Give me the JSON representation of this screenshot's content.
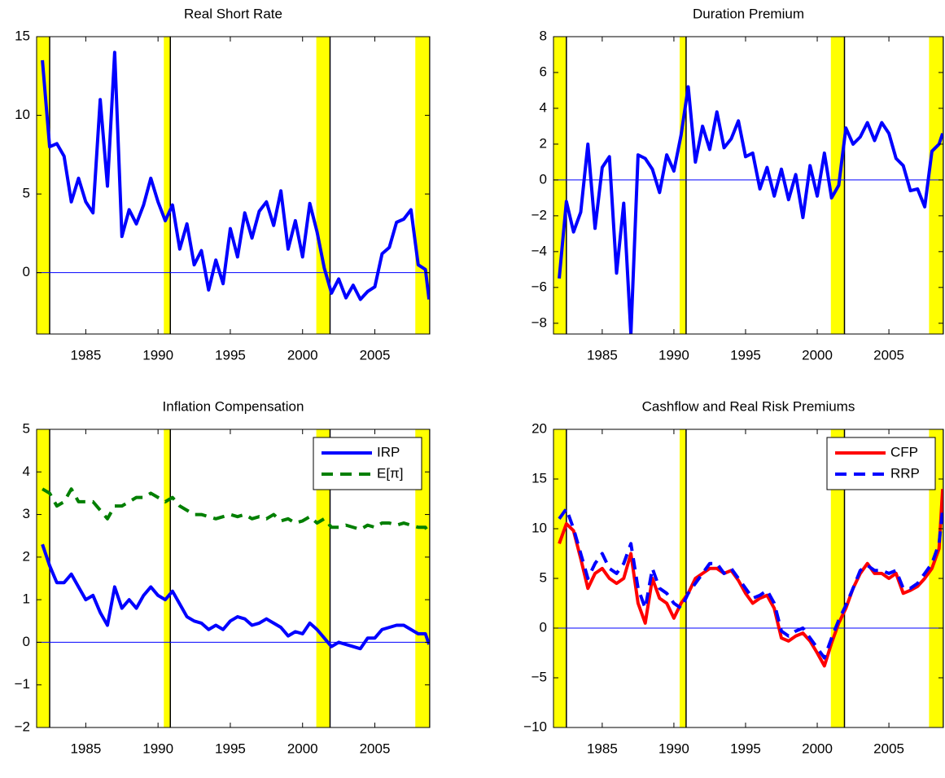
{
  "chart_data": [
    {
      "type": "line",
      "title": "Real Short Rate",
      "x": [
        1982,
        1982.5,
        1983,
        1983.5,
        1984,
        1984.5,
        1985,
        1985.5,
        1986,
        1986.5,
        1987,
        1987.5,
        1988,
        1988.5,
        1989,
        1989.5,
        1990,
        1990.5,
        1991,
        1991.5,
        1992,
        1992.5,
        1993,
        1993.5,
        1994,
        1994.5,
        1995,
        1995.5,
        1996,
        1996.5,
        1997,
        1997.5,
        1998,
        1998.5,
        1999,
        1999.5,
        2000,
        2000.5,
        2001,
        2001.5,
        2002,
        2002.5,
        2003,
        2003.5,
        2004,
        2004.5,
        2005,
        2005.5,
        2006,
        2006.5,
        2007,
        2007.5,
        2008,
        2008.5,
        2008.75
      ],
      "xlim": [
        1981.6,
        2008.8
      ],
      "xticks": [
        1985,
        1990,
        1995,
        2000,
        2005
      ],
      "ylim": [
        -3.9,
        15
      ],
      "yticks": [
        0,
        5,
        10,
        15
      ],
      "hline": 0,
      "hline_color": "#0000ff",
      "shaded_regions": [
        [
          1981.6,
          1982.5
        ],
        [
          1990.4,
          1990.85
        ],
        [
          2000.95,
          2001.9
        ],
        [
          2007.8,
          2008.8
        ]
      ],
      "shade_color": "#ffff00",
      "series": [
        {
          "color": "#0000ff",
          "style": "solid",
          "values": [
            13.5,
            8,
            8.2,
            7.4,
            4.5,
            6,
            4.5,
            3.8,
            11,
            5.5,
            14,
            2.3,
            4,
            3.1,
            4.3,
            6,
            4.5,
            3.3,
            4.3,
            1.5,
            3.1,
            0.5,
            1.4,
            -1.1,
            0.8,
            -0.7,
            2.8,
            1,
            3.8,
            2.2,
            3.9,
            4.5,
            3,
            5.2,
            1.5,
            3.3,
            1,
            4.4,
            2.6,
            0.3,
            -1.3,
            -0.4,
            -1.6,
            -0.8,
            -1.7,
            -1.2,
            -0.9,
            1.2,
            1.6,
            3.2,
            3.4,
            4,
            0.5,
            0.2,
            -1.7
          ]
        }
      ]
    },
    {
      "type": "line",
      "title": "Duration Premium",
      "x": [
        1982,
        1982.5,
        1983,
        1983.5,
        1984,
        1984.5,
        1985,
        1985.5,
        1986,
        1986.5,
        1987,
        1987.5,
        1988,
        1988.5,
        1989,
        1989.5,
        1990,
        1990.5,
        1991,
        1991.5,
        1992,
        1992.5,
        1993,
        1993.5,
        1994,
        1994.5,
        1995,
        1995.5,
        1996,
        1996.5,
        1997,
        1997.5,
        1998,
        1998.5,
        1999,
        1999.5,
        2000,
        2000.5,
        2001,
        2001.5,
        2002,
        2002.5,
        2003,
        2003.5,
        2004,
        2004.5,
        2005,
        2005.5,
        2006,
        2006.5,
        2007,
        2007.5,
        2008,
        2008.5,
        2008.75
      ],
      "xlim": [
        1981.6,
        2008.8
      ],
      "xticks": [
        1985,
        1990,
        1995,
        2000,
        2005
      ],
      "ylim": [
        -8.6,
        8
      ],
      "yticks": [
        {
          "value": -8,
          "label": "−8"
        },
        {
          "value": -6,
          "label": "−6"
        },
        {
          "value": -4,
          "label": "−4"
        },
        {
          "value": -2,
          "label": "−2"
        },
        0,
        2,
        4,
        6,
        8
      ],
      "hline": 0,
      "hline_color": "#0000ff",
      "shaded_regions": [
        [
          1981.6,
          1982.5
        ],
        [
          1990.4,
          1990.85
        ],
        [
          2000.95,
          2001.9
        ],
        [
          2007.8,
          2008.8
        ]
      ],
      "shade_color": "#ffff00",
      "series": [
        {
          "color": "#0000ff",
          "style": "solid",
          "values": [
            -5.5,
            -1.2,
            -2.9,
            -1.8,
            2,
            -2.7,
            0.7,
            1.3,
            -5.2,
            -1.3,
            -8.6,
            1.4,
            1.2,
            0.6,
            -0.7,
            1.4,
            0.5,
            2.5,
            5.2,
            1,
            3,
            1.7,
            3.8,
            1.8,
            2.3,
            3.3,
            1.3,
            1.5,
            -0.5,
            0.7,
            -0.9,
            0.6,
            -1.1,
            0.3,
            -2.1,
            0.8,
            -0.9,
            1.5,
            -1,
            -0.3,
            2.9,
            2,
            2.4,
            3.2,
            2.2,
            3.2,
            2.6,
            1.2,
            0.8,
            -0.6,
            -0.5,
            -1.5,
            1.6,
            2,
            2.6
          ]
        }
      ]
    },
    {
      "type": "line",
      "title": "Inflation Compensation",
      "x": [
        1982,
        1982.5,
        1983,
        1983.5,
        1984,
        1984.5,
        1985,
        1985.5,
        1986,
        1986.5,
        1987,
        1987.5,
        1988,
        1988.5,
        1989,
        1989.5,
        1990,
        1990.5,
        1991,
        1991.5,
        1992,
        1992.5,
        1993,
        1993.5,
        1994,
        1994.5,
        1995,
        1995.5,
        1996,
        1996.5,
        1997,
        1997.5,
        1998,
        1998.5,
        1999,
        1999.5,
        2000,
        2000.5,
        2001,
        2001.5,
        2002,
        2002.5,
        2003,
        2003.5,
        2004,
        2004.5,
        2005,
        2005.5,
        2006,
        2006.5,
        2007,
        2007.5,
        2008,
        2008.5,
        2008.75
      ],
      "xlim": [
        1981.6,
        2008.8
      ],
      "xticks": [
        1985,
        1990,
        1995,
        2000,
        2005
      ],
      "ylim": [
        -2,
        5
      ],
      "yticks": [
        {
          "value": -2,
          "label": "−2"
        },
        {
          "value": -1,
          "label": "−1"
        },
        0,
        1,
        2,
        3,
        4,
        5
      ],
      "hline": 0,
      "hline_color": "#0000ff",
      "shaded_regions": [
        [
          1981.6,
          1982.5
        ],
        [
          1990.4,
          1990.85
        ],
        [
          2000.95,
          2001.9
        ],
        [
          2007.8,
          2008.8
        ]
      ],
      "shade_color": "#ffff00",
      "legend": "upper right",
      "series": [
        {
          "name": "IRP",
          "color": "#0000ff",
          "style": "solid",
          "values": [
            2.3,
            1.8,
            1.4,
            1.4,
            1.6,
            1.3,
            1.0,
            1.1,
            0.7,
            0.4,
            1.3,
            0.8,
            1.0,
            0.8,
            1.1,
            1.3,
            1.1,
            1.0,
            1.2,
            0.9,
            0.6,
            0.5,
            0.45,
            0.3,
            0.4,
            0.3,
            0.5,
            0.6,
            0.55,
            0.4,
            0.45,
            0.55,
            0.45,
            0.35,
            0.15,
            0.25,
            0.2,
            0.45,
            0.3,
            0.1,
            -0.1,
            0,
            -0.05,
            -0.1,
            -0.15,
            0.1,
            0.1,
            0.3,
            0.35,
            0.4,
            0.4,
            0.3,
            0.2,
            0.2,
            -0.05
          ]
        },
        {
          "name": "E[π]",
          "color": "#007f00",
          "style": "dashed",
          "values": [
            3.6,
            3.5,
            3.2,
            3.3,
            3.6,
            3.3,
            3.3,
            3.3,
            3.1,
            2.9,
            3.2,
            3.2,
            3.3,
            3.4,
            3.4,
            3.5,
            3.4,
            3.3,
            3.4,
            3.2,
            3.1,
            3.0,
            3.0,
            2.95,
            2.9,
            2.95,
            3.0,
            2.95,
            3.0,
            2.9,
            2.95,
            2.9,
            3.0,
            2.85,
            2.9,
            2.8,
            2.85,
            2.95,
            2.8,
            2.9,
            2.7,
            2.7,
            2.75,
            2.7,
            2.65,
            2.75,
            2.7,
            2.8,
            2.8,
            2.75,
            2.8,
            2.75,
            2.7,
            2.7,
            2.55
          ]
        }
      ]
    },
    {
      "type": "line",
      "title": "Cashflow and Real Risk Premiums",
      "x": [
        1982,
        1982.5,
        1983,
        1983.5,
        1984,
        1984.5,
        1985,
        1985.5,
        1986,
        1986.5,
        1987,
        1987.5,
        1988,
        1988.5,
        1989,
        1989.5,
        1990,
        1990.5,
        1991,
        1991.5,
        1992,
        1992.5,
        1993,
        1993.5,
        1994,
        1994.5,
        1995,
        1995.5,
        1996,
        1996.5,
        1997,
        1997.5,
        1998,
        1998.5,
        1999,
        1999.5,
        2000,
        2000.5,
        2001,
        2001.5,
        2002,
        2002.5,
        2003,
        2003.5,
        2004,
        2004.5,
        2005,
        2005.5,
        2006,
        2006.5,
        2007,
        2007.5,
        2008,
        2008.5,
        2008.75
      ],
      "xlim": [
        1981.6,
        2008.8
      ],
      "xticks": [
        1985,
        1990,
        1995,
        2000,
        2005
      ],
      "ylim": [
        -10,
        20
      ],
      "yticks": [
        {
          "value": -10,
          "label": "−10"
        },
        {
          "value": -5,
          "label": "−5"
        },
        0,
        5,
        10,
        15,
        20
      ],
      "hline": 0,
      "hline_color": "#0000ff",
      "shaded_regions": [
        [
          1981.6,
          1982.5
        ],
        [
          1990.4,
          1990.85
        ],
        [
          2000.95,
          2001.9
        ],
        [
          2007.8,
          2008.8
        ]
      ],
      "shade_color": "#ffff00",
      "legend": "upper right",
      "series": [
        {
          "name": "CFP",
          "color": "#ff0000",
          "style": "solid",
          "values": [
            8.5,
            10.5,
            9.8,
            7,
            4,
            5.5,
            6,
            5,
            4.5,
            5,
            7.5,
            2.5,
            0.5,
            5,
            3,
            2.5,
            1,
            2.5,
            3.5,
            5,
            5.5,
            6,
            6,
            5.5,
            5.8,
            4.8,
            3.5,
            2.5,
            3,
            3.3,
            2,
            -1,
            -1.3,
            -0.8,
            -0.5,
            -1.3,
            -2.5,
            -3.8,
            -1.5,
            0.5,
            2,
            4,
            5.5,
            6.5,
            5.5,
            5.5,
            5,
            5.5,
            3.5,
            3.8,
            4.2,
            5,
            6,
            8,
            14
          ]
        },
        {
          "name": "RRP",
          "color": "#0000ff",
          "style": "dashed",
          "values": [
            11,
            12,
            10,
            7.5,
            5,
            6.5,
            7.5,
            6,
            5.5,
            6.5,
            8.5,
            4,
            2,
            6,
            4,
            3.5,
            2.5,
            2,
            3.5,
            4.5,
            5.5,
            6.5,
            6.5,
            5.5,
            6,
            5,
            4,
            3,
            3.3,
            3.8,
            2.5,
            -0.3,
            -0.8,
            -0.3,
            0,
            -1,
            -2,
            -3,
            -1,
            0.8,
            2.3,
            4,
            5.8,
            6.3,
            5.8,
            5.8,
            5.5,
            5.8,
            4,
            4,
            4.5,
            5.5,
            6.5,
            8.5,
            12
          ]
        }
      ]
    }
  ]
}
